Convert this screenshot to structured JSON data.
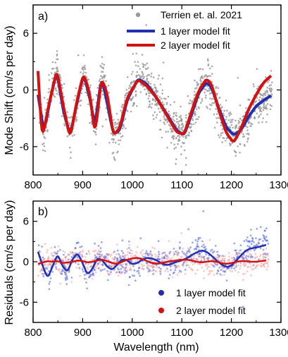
{
  "chart_data": [
    {
      "panel_label": "a)",
      "type": "scatter+line",
      "ylabel": "Mode Shift (cm/s per day)",
      "xlim": [
        800,
        1300
      ],
      "ylim": [
        -9,
        9
      ],
      "x_ticks": [
        "800",
        "900",
        "1000",
        "1100",
        "1200",
        "1300"
      ],
      "y_ticks": [
        "-6",
        "0",
        "6"
      ],
      "legend": {
        "position": "top-right"
      },
      "series": [
        {
          "name": "Terrien et. al. 2021",
          "kind": "scatter",
          "color": "#999999"
        },
        {
          "name": "1 layer model fit",
          "kind": "line",
          "color": "#1f2fb0",
          "x": [
            810,
            822,
            835,
            848,
            862,
            875,
            888,
            902,
            915,
            925,
            938,
            950,
            962,
            975,
            990,
            1012,
            1030,
            1050,
            1070,
            1090,
            1105,
            1120,
            1135,
            1150,
            1160,
            1175,
            1190,
            1205,
            1220,
            1235,
            1250,
            1265,
            1280
          ],
          "y": [
            -0.5,
            -4.6,
            -0.8,
            2.0,
            -2.5,
            -4.8,
            -1.5,
            1.8,
            -1.0,
            -4.0,
            1.5,
            -1.5,
            -4.7,
            -4.3,
            -1.0,
            1.2,
            0.6,
            -0.9,
            -2.6,
            -4.3,
            -4.8,
            -2.5,
            -0.2,
            0.8,
            0.3,
            -2.0,
            -4.0,
            -4.8,
            -4.2,
            -2.8,
            -1.7,
            -1.1,
            -0.6
          ]
        },
        {
          "name": "2 layer model fit",
          "kind": "line",
          "color": "#d41111",
          "x": [
            810,
            818,
            830,
            848,
            862,
            875,
            888,
            902,
            915,
            925,
            938,
            950,
            962,
            975,
            990,
            1012,
            1030,
            1050,
            1070,
            1090,
            1105,
            1120,
            1135,
            1150,
            1160,
            1175,
            1190,
            1205,
            1220,
            1235,
            1250,
            1265,
            1280
          ],
          "y": [
            2.0,
            -5.5,
            -2.0,
            2.2,
            -2.0,
            -5.2,
            -1.2,
            1.8,
            -0.5,
            -5.0,
            1.4,
            -0.5,
            -4.9,
            -4.0,
            -0.8,
            1.1,
            0.4,
            -0.9,
            -2.7,
            -4.5,
            -4.7,
            -2.2,
            0.0,
            1.2,
            0.6,
            -2.2,
            -4.6,
            -5.6,
            -4.0,
            -2.0,
            -0.5,
            0.8,
            1.5
          ]
        }
      ]
    },
    {
      "panel_label": "b)",
      "type": "scatter+line",
      "ylabel": "Residuals (cm/s per day)",
      "xlabel": "Wavelength (nm)",
      "xlim": [
        800,
        1300
      ],
      "ylim": [
        -9,
        9
      ],
      "x_ticks": [
        "800",
        "900",
        "1000",
        "1100",
        "1200",
        "1300"
      ],
      "y_ticks": [
        "-6",
        "0",
        "6"
      ],
      "legend": {
        "position": "bottom-right"
      },
      "series": [
        {
          "name": "1 layer model fit",
          "kind": "scatter+line",
          "color": "#1f2fb0",
          "scatter_color": "#4a63e0",
          "x": [
            810,
            820,
            830,
            840,
            850,
            860,
            870,
            880,
            890,
            900,
            910,
            920,
            930,
            940,
            950,
            960,
            970,
            980,
            990,
            1000,
            1010,
            1020,
            1030,
            1040,
            1050,
            1060,
            1070,
            1080,
            1090,
            1100,
            1110,
            1120,
            1130,
            1140,
            1150,
            1160,
            1170,
            1180,
            1190,
            1200,
            1210,
            1220,
            1230,
            1240,
            1250,
            1260,
            1270
          ],
          "y": [
            1.5,
            -0.8,
            -2.5,
            -0.5,
            1.2,
            -0.8,
            -1.5,
            0.5,
            1.3,
            -0.2,
            -2.0,
            -1.0,
            0.6,
            0.2,
            -0.8,
            -1.2,
            -0.4,
            0.4,
            0.2,
            -0.4,
            -0.2,
            0.3,
            0.6,
            0.5,
            0.2,
            -0.3,
            -0.5,
            -0.3,
            0.0,
            0.2,
            0.5,
            1.0,
            1.4,
            1.7,
            1.5,
            0.9,
            0.2,
            -0.4,
            -0.8,
            -0.6,
            0.2,
            1.0,
            1.7,
            2.0,
            2.1,
            2.3,
            2.5
          ]
        },
        {
          "name": "2 layer model fit",
          "kind": "scatter+line",
          "color": "#d41111",
          "scatter_color": "#f4a0a0",
          "x": [
            810,
            820,
            830,
            840,
            850,
            860,
            870,
            880,
            890,
            900,
            910,
            920,
            930,
            940,
            950,
            960,
            970,
            980,
            990,
            1000,
            1010,
            1020,
            1030,
            1040,
            1050,
            1060,
            1070,
            1080,
            1090,
            1100,
            1110,
            1120,
            1130,
            1140,
            1150,
            1160,
            1170,
            1180,
            1190,
            1200,
            1210,
            1220,
            1230,
            1240,
            1250,
            1260,
            1270
          ],
          "y": [
            -0.3,
            -0.1,
            0.1,
            0.0,
            0.1,
            -0.2,
            -0.1,
            0.0,
            0.2,
            0.1,
            -0.1,
            0.0,
            0.2,
            0.3,
            0.1,
            -0.2,
            -0.3,
            0.0,
            0.3,
            0.5,
            0.6,
            0.4,
            0.1,
            -0.2,
            -0.3,
            -0.2,
            0.0,
            0.1,
            0.2,
            0.3,
            0.3,
            0.2,
            0.0,
            -0.1,
            0.0,
            0.1,
            0.0,
            -0.2,
            -0.3,
            -0.2,
            0.0,
            0.1,
            0.1,
            0.0,
            0.0,
            0.1,
            0.2
          ]
        }
      ]
    }
  ]
}
